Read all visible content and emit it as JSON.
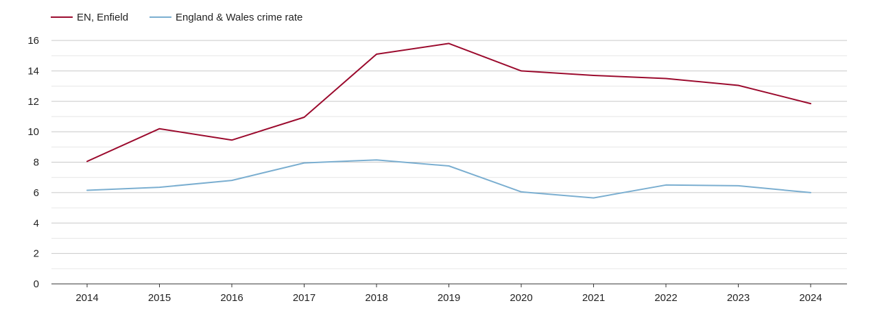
{
  "chart_data": {
    "type": "line",
    "title": "",
    "xlabel": "",
    "ylabel": "",
    "x": [
      "2014",
      "2015",
      "2016",
      "2017",
      "2018",
      "2019",
      "2020",
      "2021",
      "2022",
      "2023",
      "2024"
    ],
    "ylim": [
      0,
      16
    ],
    "yticks": [
      0,
      2,
      4,
      6,
      8,
      10,
      12,
      14,
      16
    ],
    "grid": true,
    "legend_position": "top-left",
    "series": [
      {
        "name": "EN, Enfield",
        "color": "#9b0a2d",
        "values": [
          8.05,
          10.2,
          9.45,
          10.95,
          15.1,
          15.8,
          14.0,
          13.7,
          13.5,
          13.05,
          11.85
        ]
      },
      {
        "name": "England & Wales crime rate",
        "color": "#7aaed0",
        "values": [
          6.15,
          6.35,
          6.8,
          7.95,
          8.15,
          7.75,
          6.05,
          5.65,
          6.5,
          6.45,
          6.0
        ]
      }
    ]
  }
}
